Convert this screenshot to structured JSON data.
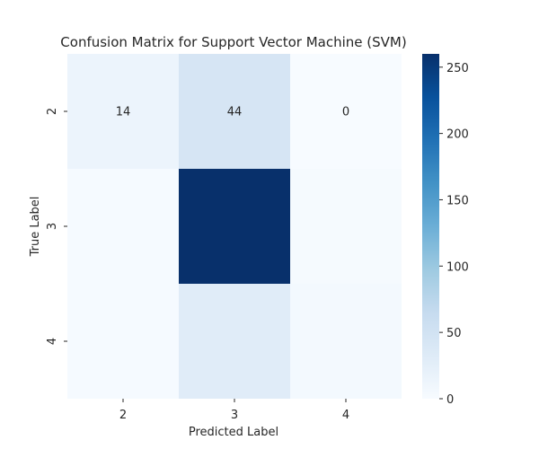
{
  "chart_data": {
    "type": "heatmap",
    "title": "Confusion Matrix for Support Vector Machine (SVM)",
    "xlabel": "Predicted Label",
    "ylabel": "True Label",
    "x_categories": [
      "2",
      "3",
      "4"
    ],
    "y_categories": [
      "2",
      "3",
      "4"
    ],
    "values": [
      [
        14,
        44,
        0
      ],
      [
        2,
        260,
        3
      ],
      [
        2,
        30,
        5
      ]
    ],
    "annotated_cells": [
      [
        0,
        0
      ],
      [
        0,
        1
      ],
      [
        0,
        2
      ]
    ],
    "colormap": "Blues",
    "colorbar": {
      "range": [
        0,
        260
      ],
      "ticks": [
        0,
        50,
        100,
        150,
        200,
        250
      ],
      "low_color": "#f7fbff",
      "high_color": "#08306b"
    }
  }
}
